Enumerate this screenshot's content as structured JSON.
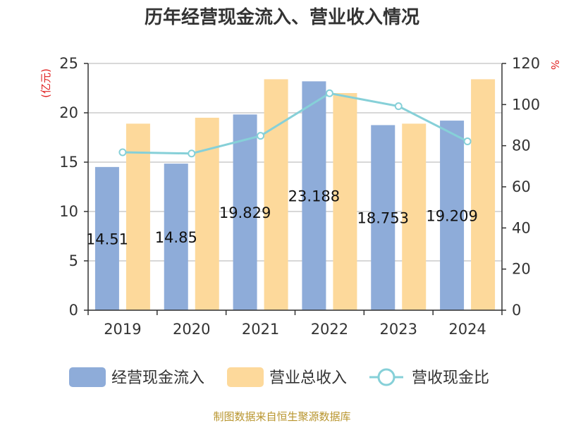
{
  "chart_data": {
    "type": "bar",
    "title": "历年经营现金流入、营业收入情况",
    "categories": [
      "2019",
      "2020",
      "2021",
      "2022",
      "2023",
      "2024"
    ],
    "series": [
      {
        "name": "经营现金流入",
        "kind": "bar",
        "axis": "left",
        "color": "#8eacd9",
        "values": [
          14.51,
          14.85,
          19.829,
          23.188,
          18.753,
          19.209
        ],
        "labels": [
          "14.51",
          "14.85",
          "19.829",
          "23.188",
          "18.753",
          "19.209"
        ]
      },
      {
        "name": "营业总收入",
        "kind": "bar",
        "axis": "left",
        "color": "#fdd99b",
        "values": [
          18.9,
          19.5,
          23.4,
          22.0,
          18.9,
          23.4
        ]
      },
      {
        "name": "营收现金比",
        "kind": "line",
        "axis": "right",
        "color": "#86d0d8",
        "values": [
          76.8,
          76.2,
          84.8,
          105.5,
          99.2,
          82.1
        ]
      }
    ],
    "y_left": {
      "min": 0,
      "max": 25,
      "ticks": [
        0,
        5,
        10,
        15,
        20,
        25
      ],
      "unit": "(亿元)"
    },
    "y_right": {
      "min": 0,
      "max": 120,
      "ticks": [
        0,
        20,
        40,
        60,
        80,
        100,
        120
      ],
      "unit": "%"
    },
    "grid": true,
    "legend_position": "bottom",
    "colors": {
      "axis_unit": "#e02020",
      "source": "#b8952e",
      "grid": "#cccccc",
      "axis": "#333333"
    }
  },
  "source_text": "制图数据来自恒生聚源数据库"
}
